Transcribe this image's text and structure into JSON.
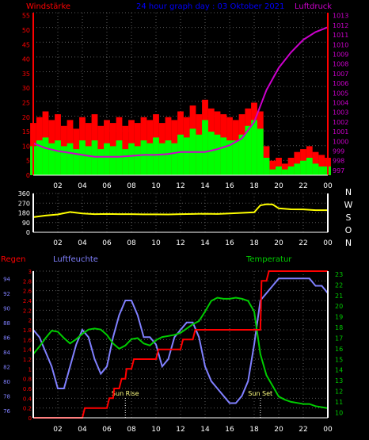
{
  "colors": {
    "background": "#000000",
    "axis": "#ffffff",
    "gust": "#ff0000",
    "avg_wind": "#00ff00",
    "pressure": "#cc00cc",
    "direction": "#ffff00",
    "humidity": "#8080ff",
    "rain": "#ff0000",
    "temperature": "#00cc00",
    "grid": "#5a5a5a"
  },
  "chart_data": [
    {
      "type": "bar",
      "title": "24 hour graph day : 03 Oktober 2021",
      "left_label": "Windstärke",
      "right_label": "Luftdruck",
      "grid": true,
      "x_ticks": [
        "02",
        "04",
        "06",
        "08",
        "10",
        "12",
        "14",
        "16",
        "18",
        "20",
        "22",
        "00"
      ],
      "x_range_hours": [
        0,
        24
      ],
      "y_ticks_left": [
        "0",
        "5",
        "10",
        "15",
        "20",
        "25",
        "30",
        "35",
        "40",
        "45",
        "50",
        "55"
      ],
      "ylim_left": [
        0,
        56
      ],
      "y_ticks_right": [
        "997",
        "998",
        "999",
        "1000",
        "1001",
        "1002",
        "1003",
        "1004",
        "1005",
        "1006",
        "1007",
        "1008",
        "1009",
        "1010",
        "1011",
        "1012",
        "1013"
      ],
      "ylim_right": [
        996.5,
        1013.3
      ],
      "series": [
        {
          "kind": "gust_bars",
          "axis": "left",
          "hours": [
            0,
            0.5,
            1,
            1.5,
            2,
            2.5,
            3,
            3.5,
            4,
            4.5,
            5,
            5.5,
            6,
            6.5,
            7,
            7.5,
            8,
            8.5,
            9,
            9.5,
            10,
            10.5,
            11,
            11.5,
            12,
            12.5,
            13,
            13.5,
            14,
            14.5,
            15,
            15.5,
            16,
            16.5,
            17,
            17.5,
            18,
            18.5,
            19,
            19.5,
            20,
            20.5,
            21,
            21.5,
            22,
            22.5,
            23,
            23.5,
            24
          ],
          "values": [
            18,
            20,
            22,
            19,
            21,
            17,
            19,
            16,
            20,
            18,
            21,
            17,
            19,
            18,
            20,
            17,
            19,
            18,
            20,
            19,
            21,
            18,
            20,
            19,
            22,
            20,
            24,
            21,
            26,
            23,
            22,
            21,
            20,
            19,
            21,
            23,
            25,
            22,
            10,
            5,
            6,
            4,
            6,
            8,
            9,
            10,
            8,
            7,
            6
          ]
        },
        {
          "kind": "avg_wind_bars",
          "axis": "left",
          "hours": [
            0,
            0.5,
            1,
            1.5,
            2,
            2.5,
            3,
            3.5,
            4,
            4.5,
            5,
            5.5,
            6,
            6.5,
            7,
            7.5,
            8,
            8.5,
            9,
            9.5,
            10,
            10.5,
            11,
            11.5,
            12,
            12.5,
            13,
            13.5,
            14,
            14.5,
            15,
            15.5,
            16,
            16.5,
            17,
            17.5,
            18,
            18.5,
            19,
            19.5,
            20,
            20.5,
            21,
            21.5,
            22,
            22.5,
            23,
            23.5,
            24
          ],
          "values": [
            10,
            12,
            13,
            11,
            12,
            10,
            11,
            9,
            12,
            10,
            12,
            9,
            11,
            10,
            12,
            9,
            11,
            10,
            12,
            11,
            13,
            11,
            12,
            11,
            14,
            13,
            16,
            14,
            19,
            15,
            14,
            13,
            12,
            12,
            14,
            17,
            19,
            16,
            6,
            2,
            3,
            2,
            3,
            4,
            5,
            6,
            4,
            3,
            3
          ]
        },
        {
          "name": "Luftdruck",
          "kind": "line",
          "axis": "right",
          "hours": [
            0,
            1,
            2,
            3,
            4,
            5,
            6,
            7,
            8,
            9,
            10,
            11,
            12,
            13,
            14,
            15,
            16,
            17,
            18,
            19,
            20,
            21,
            22,
            23,
            24
          ],
          "values": [
            999.8,
            999.3,
            999.0,
            998.8,
            998.6,
            998.4,
            998.4,
            998.4,
            998.5,
            998.6,
            998.6,
            998.7,
            998.9,
            998.9,
            998.9,
            999.2,
            999.6,
            1000.3,
            1002.0,
            1005.3,
            1007.6,
            1009.2,
            1010.5,
            1011.3,
            1011.8
          ]
        }
      ]
    },
    {
      "type": "line",
      "x_ticks": [
        "02",
        "04",
        "06",
        "08",
        "10",
        "12",
        "14",
        "16",
        "18",
        "20",
        "22",
        "00"
      ],
      "x_range_hours": [
        0,
        24
      ],
      "y_ticks": [
        "0",
        "90",
        "180",
        "270",
        "360"
      ],
      "ylim": [
        0,
        360
      ],
      "right_labels": [
        "N",
        "W",
        "S",
        "O",
        "N"
      ],
      "grid": true,
      "series": [
        {
          "kind": "direction",
          "hours": [
            0,
            1,
            2,
            3,
            4,
            5,
            6,
            7,
            8,
            9,
            10,
            11,
            12,
            13,
            14,
            15,
            16,
            17,
            18,
            18.5,
            19,
            19.5,
            20,
            21,
            22,
            23,
            24
          ],
          "values": [
            140,
            155,
            165,
            188,
            175,
            168,
            170,
            168,
            168,
            166,
            166,
            165,
            168,
            170,
            172,
            170,
            175,
            180,
            185,
            250,
            260,
            258,
            222,
            213,
            212,
            205,
            205
          ]
        }
      ]
    },
    {
      "type": "line",
      "left_label": "Regen",
      "humidity_label": "Luftfeuchte",
      "temperature_label": "Temperatur",
      "x_ticks": [
        "02",
        "04",
        "06",
        "08",
        "10",
        "12",
        "14",
        "16",
        "18",
        "20",
        "22",
        "00"
      ],
      "x_range_hours": [
        0,
        24
      ],
      "grid": true,
      "rain_ticks": [
        "0",
        "0.2",
        "0.4",
        "0.6",
        "0.8",
        "1",
        "1.2",
        "1.4",
        "1.6",
        "1.8",
        "2",
        "2.2",
        "2.4",
        "2.6",
        "2.8",
        "3"
      ],
      "rain_range": [
        0,
        3
      ],
      "humidity_ticks": [
        "76",
        "78",
        "80",
        "82",
        "84",
        "86",
        "88",
        "90",
        "92",
        "94"
      ],
      "humidity_range": [
        75,
        95
      ],
      "temperature_ticks": [
        "10",
        "11",
        "12",
        "13",
        "14",
        "15",
        "16",
        "17",
        "18",
        "19",
        "20",
        "21",
        "22",
        "23"
      ],
      "temperature_range": [
        9.5,
        23.3
      ],
      "annotations": [
        {
          "text": "Sun Rise",
          "hour": 7.5
        },
        {
          "text": "Sun Set",
          "hour": 18.5
        }
      ],
      "series": [
        {
          "kind": "rain",
          "hours": [
            0,
            2,
            2.2,
            4,
            4.2,
            6,
            6.2,
            6.5,
            6.6,
            7,
            7.2,
            7.5,
            7.6,
            8,
            8.2,
            10,
            10.2,
            12,
            12.2,
            13,
            13.2,
            18.5,
            18.6,
            19,
            19.2,
            24
          ],
          "values": [
            0,
            0,
            0,
            0,
            0.2,
            0.2,
            0.4,
            0.4,
            0.6,
            0.6,
            0.8,
            0.8,
            1.0,
            1.0,
            1.2,
            1.2,
            1.4,
            1.4,
            1.6,
            1.6,
            1.8,
            1.8,
            2.8,
            2.8,
            3.0,
            3.0
          ]
        },
        {
          "kind": "humidity",
          "hours": [
            0,
            0.5,
            1,
            1.5,
            2,
            2.5,
            3,
            3.5,
            4,
            4.5,
            5,
            5.5,
            6,
            6.5,
            7,
            7.5,
            8,
            8.5,
            9,
            9.5,
            10,
            10.5,
            11,
            11.5,
            12,
            12.5,
            13,
            13.5,
            14,
            14.5,
            15,
            15.5,
            16,
            16.5,
            17,
            17.5,
            18,
            18.5,
            19,
            19.5,
            20,
            20.5,
            21,
            21.5,
            22,
            22.5,
            23,
            23.5,
            24
          ],
          "values": [
            87,
            86,
            84,
            82,
            79,
            79,
            82,
            85,
            87,
            86,
            83,
            81,
            82,
            86,
            89,
            91,
            91,
            89,
            86,
            86,
            85,
            82,
            83,
            86,
            87,
            88,
            88,
            86,
            82,
            80,
            79,
            78,
            77,
            77,
            78,
            80,
            85,
            91,
            92,
            93,
            94,
            94,
            94,
            94,
            94,
            94,
            93,
            93,
            92
          ]
        },
        {
          "kind": "temperature",
          "hours": [
            0,
            0.5,
            1,
            1.5,
            2,
            2.5,
            3,
            3.5,
            4,
            4.5,
            5,
            5.5,
            6,
            6.5,
            7,
            7.5,
            8,
            8.5,
            9,
            9.5,
            10,
            10.5,
            11,
            11.5,
            12,
            12.5,
            13,
            13.5,
            14,
            14.5,
            15,
            15.5,
            16,
            16.5,
            17,
            17.5,
            18,
            18.5,
            19,
            19.5,
            20,
            20.5,
            21,
            21.5,
            22,
            22.5,
            23,
            23.5,
            24
          ],
          "values": [
            15.5,
            16.2,
            17.0,
            17.7,
            17.6,
            17.0,
            16.5,
            16.9,
            17.4,
            17.8,
            17.9,
            17.8,
            17.3,
            16.5,
            16.0,
            16.3,
            16.9,
            17.0,
            16.5,
            16.3,
            16.8,
            17.1,
            17.2,
            17.3,
            17.5,
            17.9,
            18.3,
            18.6,
            19.5,
            20.5,
            20.8,
            20.7,
            20.7,
            20.8,
            20.7,
            20.5,
            19.5,
            15.5,
            13.5,
            12.5,
            11.5,
            11.2,
            11.0,
            10.9,
            10.8,
            10.8,
            10.6,
            10.5,
            10.4
          ]
        }
      ]
    }
  ]
}
